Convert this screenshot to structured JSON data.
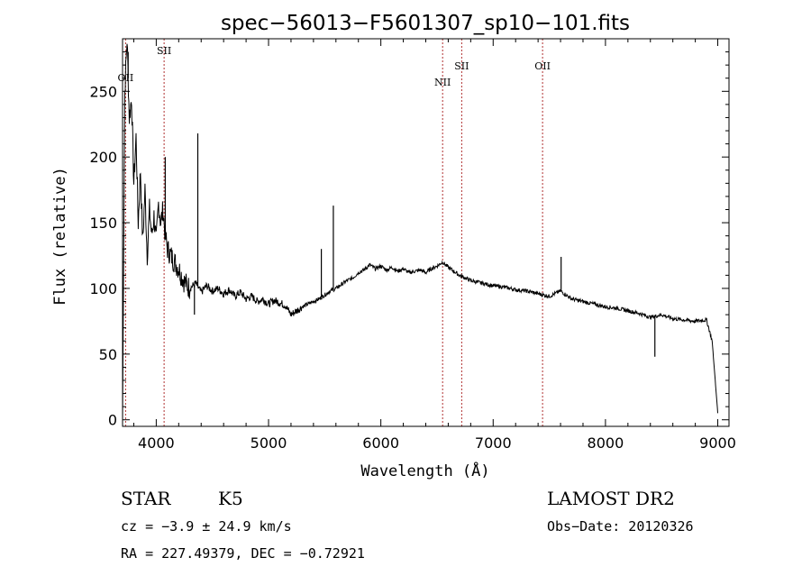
{
  "chart_data": {
    "type": "line",
    "title": "spec−56013−F5601307_sp10−101.fits",
    "xlabel": "Wavelength (Å)",
    "ylabel": "Flux (relative)",
    "xlim": [
      3700,
      9100
    ],
    "ylim": [
      -5,
      290
    ],
    "xticks": [
      4000,
      5000,
      6000,
      7000,
      8000,
      9000
    ],
    "yticks": [
      0,
      50,
      100,
      150,
      200,
      250
    ],
    "grid": false,
    "line_color": "#000000",
    "marker_color": "#b03030",
    "emission_lines": [
      {
        "label": "OII",
        "wavelength": 3727
      },
      {
        "label": "SII",
        "wavelength": 4070
      },
      {
        "label": "NII",
        "wavelength": 6550
      },
      {
        "label": "SII",
        "wavelength": 6720
      },
      {
        "label": "OII",
        "wavelength": 7440
      }
    ],
    "series": [
      {
        "x": [
          3700,
          3720,
          3740,
          3760,
          3780,
          3800,
          3820,
          3840,
          3860,
          3880,
          3900,
          3920,
          3940,
          3960,
          3980,
          4000,
          4020,
          4040,
          4060,
          4080,
          4100,
          4150,
          4200,
          4250,
          4300,
          4350,
          4400,
          4450,
          4500,
          4550,
          4600,
          4650,
          4700,
          4750,
          4800,
          4850,
          4900,
          4950,
          5000,
          5050,
          5100,
          5150,
          5200,
          5250,
          5300,
          5350,
          5400,
          5450,
          5500,
          5550,
          5600,
          5650,
          5700,
          5750,
          5800,
          5850,
          5900,
          5950,
          6000,
          6050,
          6100,
          6150,
          6200,
          6250,
          6300,
          6350,
          6400,
          6450,
          6500,
          6550,
          6600,
          6650,
          6700,
          6750,
          6800,
          6900,
          7000,
          7100,
          7200,
          7300,
          7400,
          7500,
          7600,
          7700,
          7800,
          7900,
          8000,
          8100,
          8200,
          8300,
          8400,
          8500,
          8600,
          8700,
          8800,
          8900,
          8950,
          9000
        ],
        "y": [
          0,
          250,
          290,
          230,
          245,
          180,
          215,
          150,
          190,
          135,
          175,
          125,
          160,
          140,
          155,
          135,
          165,
          150,
          160,
          140,
          130,
          122,
          115,
          105,
          100,
          104,
          97,
          102,
          98,
          100,
          96,
          99,
          94,
          97,
          92,
          94,
          90,
          92,
          88,
          91,
          89,
          87,
          80,
          83,
          86,
          88,
          90,
          92,
          95,
          98,
          100,
          103,
          106,
          108,
          112,
          114,
          118,
          115,
          117,
          114,
          116,
          113,
          115,
          112,
          113,
          114,
          112,
          115,
          117,
          120,
          116,
          113,
          110,
          108,
          106,
          104,
          102,
          101,
          99,
          98,
          96,
          94,
          98,
          92,
          90,
          88,
          86,
          85,
          83,
          81,
          78,
          80,
          77,
          76,
          75,
          76,
          60,
          5
        ]
      }
    ],
    "spikes": [
      {
        "x": 3750,
        "y": 280
      },
      {
        "x": 4080,
        "y": 200
      },
      {
        "x": 4340,
        "y": 80
      },
      {
        "x": 4370,
        "y": 218
      },
      {
        "x": 5470,
        "y": 130
      },
      {
        "x": 5577,
        "y": 163
      },
      {
        "x": 7605,
        "y": 124
      },
      {
        "x": 8440,
        "y": 48
      }
    ]
  },
  "info": {
    "object_type": "STAR",
    "subclass": "K5",
    "survey": "LAMOST DR2",
    "redshift": "cz = −3.9 ± 24.9 km/s",
    "obs_date": "Obs−Date: 20120326",
    "coords": "RA = 227.49379, DEC =  −0.72921"
  }
}
